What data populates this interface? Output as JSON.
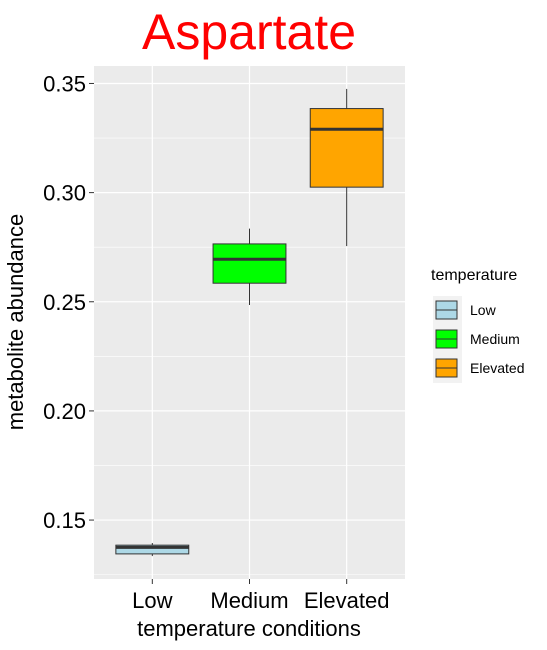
{
  "chart_data": {
    "type": "boxplot",
    "title": "Aspartate",
    "xlabel": "temperature conditions",
    "ylabel": "metabolite abundance",
    "categories": [
      "Low",
      "Medium",
      "Elevated"
    ],
    "ylim": [
      0.123,
      0.358
    ],
    "yticks": [
      0.15,
      0.2,
      0.25,
      0.3,
      0.35
    ],
    "ytick_labels": [
      "0.15",
      "0.20",
      "0.25",
      "0.30",
      "0.35"
    ],
    "grid": true,
    "legend": {
      "title": "temperature",
      "position": "right",
      "entries": [
        "Low",
        "Medium",
        "Elevated"
      ]
    },
    "colors": {
      "title": "#ff0000",
      "panel_bg": "#ebebeb",
      "grid": "#ffffff",
      "fills": [
        "#add8e6",
        "#00ff00",
        "#ffa500"
      ]
    },
    "series": [
      {
        "category": "Low",
        "min": 0.1335,
        "q1": 0.1345,
        "median": 0.1375,
        "q3": 0.1385,
        "max": 0.1395
      },
      {
        "category": "Medium",
        "min": 0.2485,
        "q1": 0.2585,
        "median": 0.2695,
        "q3": 0.2765,
        "max": 0.2835
      },
      {
        "category": "Elevated",
        "min": 0.2755,
        "q1": 0.3025,
        "median": 0.329,
        "q3": 0.3385,
        "max": 0.3475
      }
    ]
  }
}
